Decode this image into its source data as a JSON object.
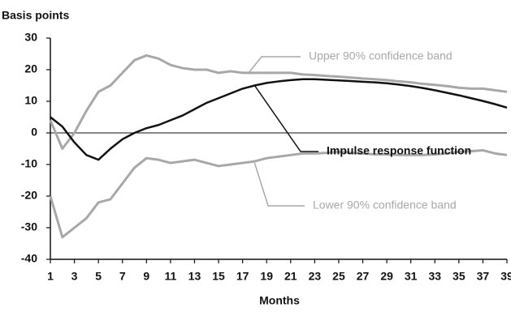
{
  "chart_data": {
    "type": "line",
    "y_label": "Basis points",
    "x_label": "Months",
    "x": [
      1,
      2,
      3,
      4,
      5,
      6,
      7,
      8,
      9,
      10,
      11,
      12,
      13,
      14,
      15,
      16,
      17,
      18,
      19,
      20,
      21,
      22,
      23,
      24,
      25,
      26,
      27,
      28,
      29,
      30,
      31,
      32,
      33,
      34,
      35,
      36,
      37,
      38,
      39
    ],
    "xlim": [
      1,
      39
    ],
    "xticks": [
      1,
      3,
      5,
      7,
      9,
      11,
      13,
      15,
      17,
      19,
      21,
      23,
      25,
      27,
      29,
      31,
      33,
      35,
      37,
      39
    ],
    "ylim": [
      -40,
      30
    ],
    "yticks": [
      -40,
      -30,
      -20,
      -10,
      0,
      10,
      20,
      30
    ],
    "grid": false,
    "series": [
      {
        "name": "Upper 90% confidence band",
        "color": "#a8a8a8",
        "values": [
          4,
          -5,
          0,
          7,
          13,
          15,
          19,
          23,
          24.5,
          23.5,
          21.5,
          20.5,
          20,
          20,
          19,
          19.5,
          19,
          19,
          19,
          19,
          19,
          18.5,
          18.3,
          18,
          17.8,
          17.5,
          17.2,
          17,
          16.7,
          16.3,
          16,
          15.5,
          15.2,
          14.8,
          14.3,
          14,
          14,
          13.5,
          13
        ]
      },
      {
        "name": "Impulse response function",
        "color": "#111111",
        "values": [
          5,
          2,
          -3,
          -7,
          -8.5,
          -5,
          -2,
          0,
          1.5,
          2.5,
          4,
          5.5,
          7.5,
          9.5,
          11,
          12.5,
          14,
          15,
          15.8,
          16.3,
          16.7,
          17,
          17,
          16.8,
          16.6,
          16.4,
          16.2,
          16,
          15.7,
          15.3,
          14.8,
          14.2,
          13.5,
          12.7,
          11.9,
          11,
          10.1,
          9.1,
          8
        ]
      },
      {
        "name": "Lower 90% confidence band",
        "color": "#a8a8a8",
        "values": [
          -20,
          -33,
          -30,
          -27,
          -22,
          -21,
          -16,
          -11,
          -8,
          -8.5,
          -9.5,
          -9,
          -8.5,
          -9.5,
          -10.5,
          -10,
          -9.5,
          -9,
          -8,
          -7.5,
          -7,
          -6.5,
          -6.5,
          -6.3,
          -6,
          -6.3,
          -6.5,
          -6.8,
          -6.8,
          -7,
          -7,
          -7,
          -6.8,
          -6.5,
          -6,
          -5.8,
          -5.5,
          -6.5,
          -7
        ]
      }
    ]
  }
}
